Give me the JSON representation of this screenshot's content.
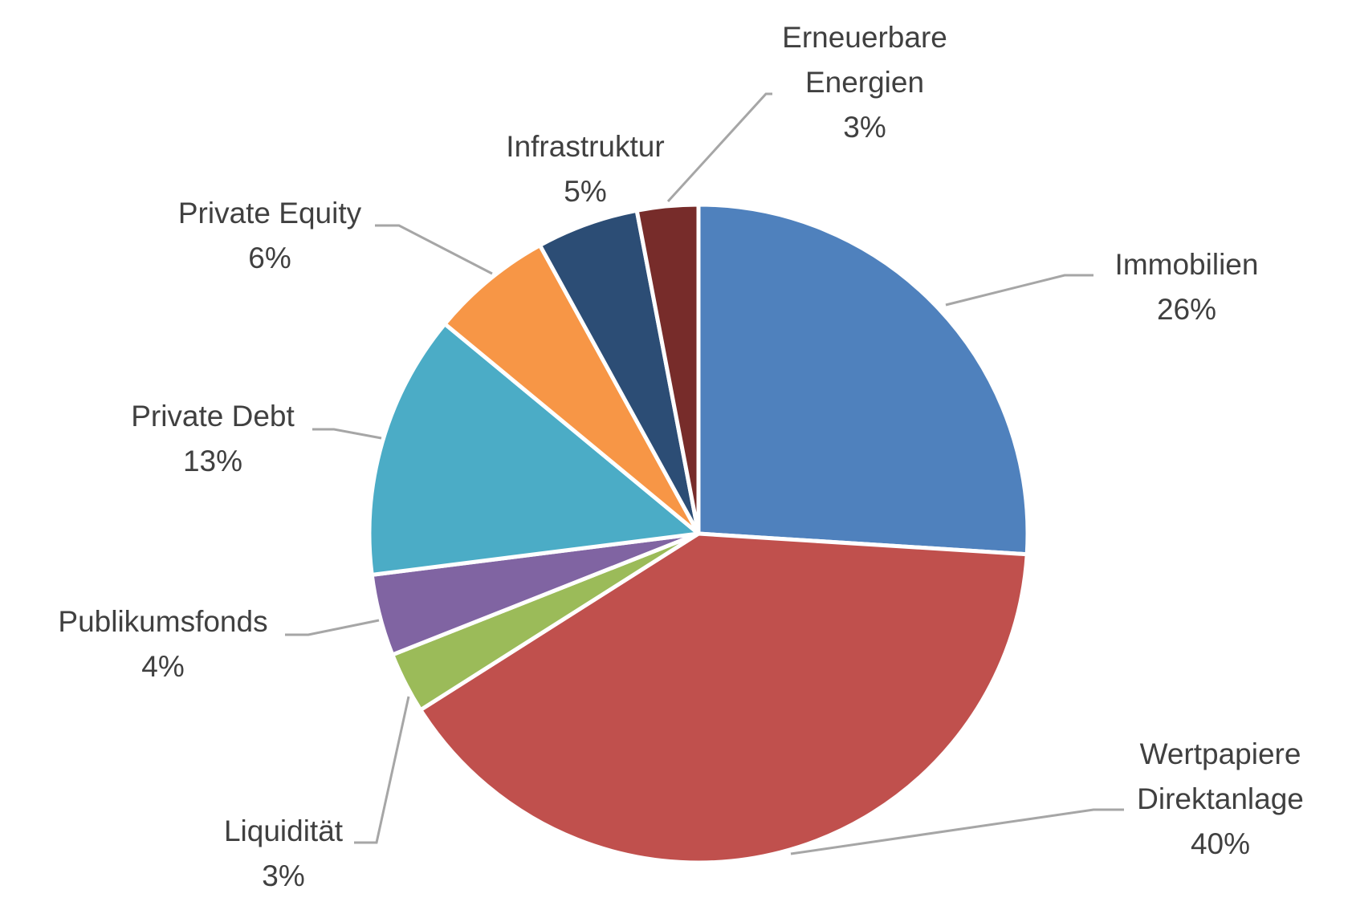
{
  "chart_data": {
    "type": "pie",
    "title": "",
    "start_angle_deg": 0,
    "direction": "clockwise",
    "slices": [
      {
        "label": "Immobilien",
        "value": 26,
        "value_label": "26%",
        "color": "#4f81bd"
      },
      {
        "label": "Wertpapiere Direktanlage",
        "value": 40,
        "value_label": "40%",
        "color": "#c0504d"
      },
      {
        "label": "Liquidität",
        "value": 3,
        "value_label": "3%",
        "color": "#9bbb59"
      },
      {
        "label": "Publikumsfonds",
        "value": 4,
        "value_label": "4%",
        "color": "#8064a2"
      },
      {
        "label": "Private Debt",
        "value": 13,
        "value_label": "13%",
        "color": "#4bacc6"
      },
      {
        "label": "Private Equity",
        "value": 6,
        "value_label": "6%",
        "color": "#f79646"
      },
      {
        "label": "Infrastruktur",
        "value": 5,
        "value_label": "5%",
        "color": "#2c4d75"
      },
      {
        "label": "Erneuerbare Energien",
        "value": 3,
        "value_label": "3%",
        "color": "#772c2a"
      }
    ],
    "legend": "none",
    "data_labels": "outside-with-leader-lines"
  }
}
